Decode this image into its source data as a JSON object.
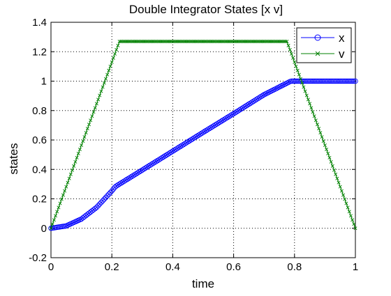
{
  "figure": {
    "title": "Double Integrator States [x v]",
    "background": "#ffffff"
  },
  "chart_data": {
    "type": "line",
    "title": "Double Integrator States [x v]",
    "xlabel": "time",
    "ylabel": "states",
    "xlim": [
      0,
      1
    ],
    "ylim": [
      -0.2,
      1.4
    ],
    "xticks": [
      0,
      0.2,
      0.4,
      0.6,
      0.8,
      1
    ],
    "xtick_labels": [
      "0",
      "0.2",
      "0.4",
      "0.6",
      "0.8",
      "1"
    ],
    "yticks": [
      -0.2,
      0,
      0.2,
      0.4,
      0.6,
      0.8,
      1,
      1.2,
      1.4
    ],
    "ytick_labels": [
      "-0.2",
      "0",
      "0.2",
      "0.4",
      "0.6",
      "0.8",
      "1",
      "1.2",
      "1.4"
    ],
    "grid": true,
    "legend_position": "top-right",
    "series": [
      {
        "name": "x",
        "color": "#0000ff",
        "marker": "circle",
        "x": [
          0,
          0.05,
          0.1,
          0.15,
          0.2,
          0.212,
          0.3,
          0.4,
          0.5,
          0.6,
          0.7,
          0.788,
          0.8,
          0.85,
          0.9,
          0.95,
          1.0
        ],
        "y": [
          0,
          0.016,
          0.063,
          0.142,
          0.254,
          0.284,
          0.396,
          0.524,
          0.652,
          0.779,
          0.908,
          1.0,
          1.0,
          1.0,
          1.0,
          1.0,
          1.0
        ]
      },
      {
        "name": "v",
        "color": "#008000",
        "marker": "x",
        "x": [
          0,
          0.225,
          0.775,
          1.0
        ],
        "y": [
          0,
          1.27,
          1.27,
          0
        ]
      }
    ]
  }
}
